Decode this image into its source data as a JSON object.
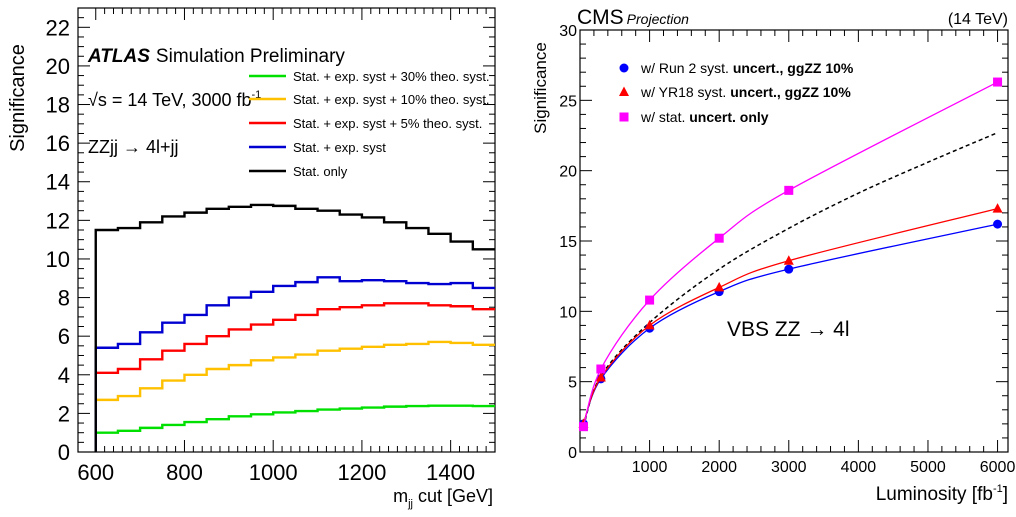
{
  "chart_data": [
    {
      "type": "line",
      "title": "",
      "header": {
        "brand": "ATLAS",
        "text": "Simulation Preliminary"
      },
      "annotations": [
        "√s = 14 TeV, 3000 fb",
        "-1",
        "ZZjj → 4l+jj"
      ],
      "xlabel_main": "m",
      "xlabel_sub": "jj",
      "xlabel_tail": " cut [GeV]",
      "ylabel": "Significance",
      "xlim": [
        560,
        1500
      ],
      "ylim": [
        0,
        23
      ],
      "x_ticks": [
        "600",
        "800",
        "1000",
        "1200",
        "1400"
      ],
      "y_ticks": [
        "0",
        "2",
        "4",
        "6",
        "8",
        "10",
        "12",
        "14",
        "16",
        "18",
        "20",
        "22"
      ],
      "x_edges": [
        600,
        650,
        700,
        750,
        800,
        850,
        900,
        950,
        1000,
        1050,
        1100,
        1150,
        1200,
        1250,
        1300,
        1350,
        1400,
        1450,
        1500
      ],
      "series": [
        {
          "name": "Stat. + exp. syst + 30% theo. syst.",
          "color": "#00e000",
          "values": [
            1.0,
            1.1,
            1.25,
            1.4,
            1.55,
            1.7,
            1.85,
            1.95,
            2.05,
            2.12,
            2.2,
            2.25,
            2.3,
            2.35,
            2.38,
            2.4,
            2.4,
            2.38
          ]
        },
        {
          "name": "Stat. + exp. syst + 10% theo. syst.",
          "color": "#ffc000",
          "values": [
            2.7,
            2.9,
            3.3,
            3.7,
            4.0,
            4.3,
            4.5,
            4.75,
            4.9,
            5.05,
            5.25,
            5.35,
            5.45,
            5.55,
            5.6,
            5.7,
            5.65,
            5.55
          ]
        },
        {
          "name": "Stat. + exp. syst + 5% theo. syst.",
          "color": "#ff0000",
          "values": [
            4.1,
            4.3,
            4.8,
            5.25,
            5.6,
            6.0,
            6.35,
            6.6,
            6.85,
            7.1,
            7.4,
            7.5,
            7.6,
            7.7,
            7.7,
            7.6,
            7.55,
            7.4
          ]
        },
        {
          "name": "Stat. + exp. syst",
          "color": "#0000d0",
          "values": [
            5.4,
            5.6,
            6.2,
            6.7,
            7.1,
            7.6,
            8.0,
            8.3,
            8.6,
            8.8,
            9.05,
            8.85,
            8.9,
            8.85,
            8.75,
            8.7,
            8.75,
            8.5
          ]
        },
        {
          "name": "Stat. only",
          "color": "#000000",
          "values": [
            11.5,
            11.6,
            11.9,
            12.2,
            12.4,
            12.6,
            12.7,
            12.8,
            12.75,
            12.6,
            12.5,
            12.3,
            12.15,
            11.9,
            11.6,
            11.3,
            10.9,
            10.5
          ]
        }
      ]
    },
    {
      "type": "scatter",
      "title": "CMS",
      "subtitle": "Projection",
      "energy": "(14 TeV)",
      "annotation": "VBS ZZ → 4l",
      "xlabel": "Luminosity [fb",
      "xlabel_sup": "-1",
      "xlabel_close": "]",
      "ylabel": "Significance",
      "xlim": [
        0,
        6150
      ],
      "ylim": [
        0,
        30
      ],
      "x_ticks": [
        "1000",
        "2000",
        "3000",
        "4000",
        "5000",
        "6000"
      ],
      "y_ticks": [
        "0",
        "5",
        "10",
        "15",
        "20",
        "25",
        "30"
      ],
      "series": [
        {
          "name": "w/ Run 2 syst. uncert., ggZZ 10%",
          "name_plain": "w/ Run 2 syst. ",
          "name_bold": "uncert., ggZZ 10%",
          "color": "#0000ff",
          "marker": "circle",
          "x": [
            50,
            300,
            1000,
            2000,
            3000,
            6000
          ],
          "y": [
            2.0,
            5.2,
            8.8,
            11.4,
            13.0,
            16.2
          ]
        },
        {
          "name": "w/ YR18 syst. uncert., ggZZ 10%",
          "name_plain": "w/ YR18 syst. ",
          "name_bold": "uncert., ggZZ 10%",
          "color": "#ff0000",
          "marker": "triangle",
          "x": [
            50,
            300,
            1000,
            2000,
            3000,
            6000
          ],
          "y": [
            2.0,
            5.3,
            9.0,
            11.7,
            13.6,
            17.3
          ]
        },
        {
          "name": "w/ stat. uncert. only",
          "name_plain": "w/ stat. ",
          "name_bold": "uncert. only",
          "color": "#ff00ff",
          "marker": "square",
          "x": [
            50,
            300,
            1000,
            2000,
            3000,
            6000
          ],
          "y": [
            1.8,
            5.9,
            10.8,
            15.2,
            18.6,
            26.3
          ]
        }
      ],
      "dashed_curve": {
        "color": "#000000",
        "x": [
          50,
          300,
          1000,
          2000,
          3000,
          4000,
          5000,
          6000
        ],
        "y": [
          1.8,
          5.4,
          9.2,
          13.0,
          15.9,
          18.4,
          20.6,
          22.7
        ]
      }
    }
  ]
}
